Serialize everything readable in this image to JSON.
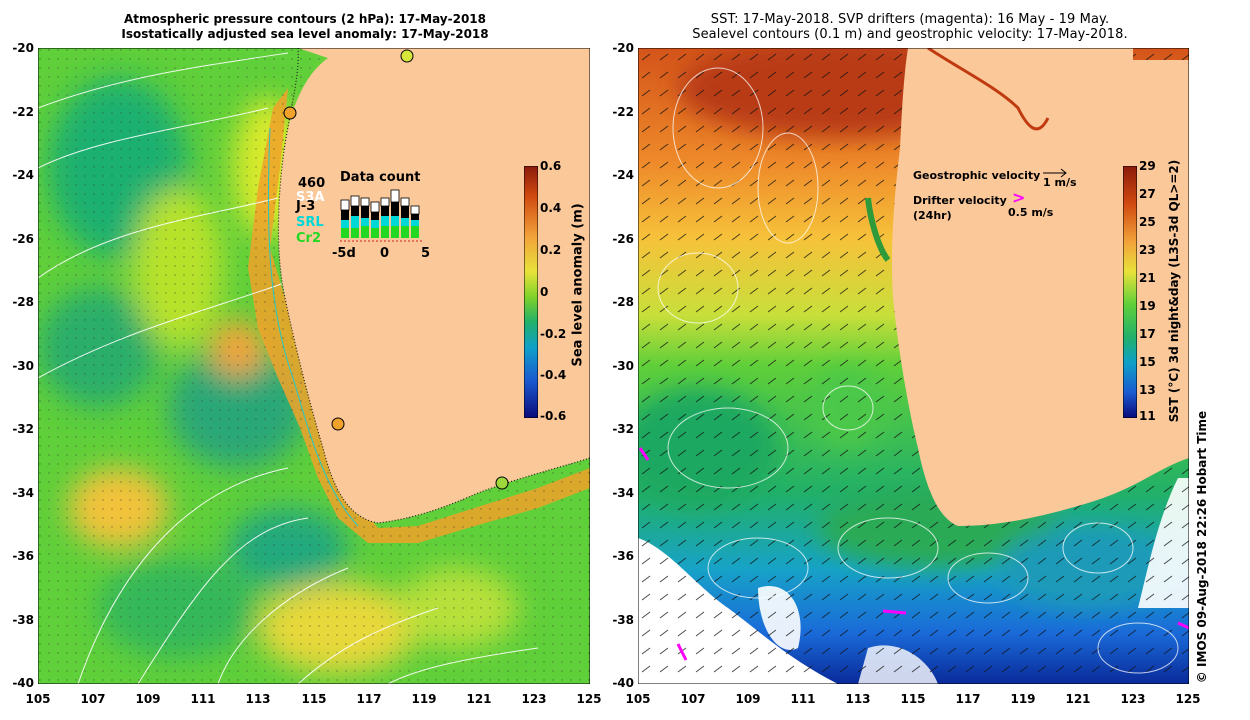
{
  "left_panel": {
    "title_line1": "Atmospheric pressure contours (2 hPa): 17-May-2018",
    "title_line2": "Isostatically adjusted sea level anomaly: 17-May-2018",
    "y_ticks": [
      "-20",
      "-22",
      "-24",
      "-26",
      "-28",
      "-30",
      "-32",
      "-34",
      "-36",
      "-38",
      "-40"
    ],
    "x_ticks": [
      "105",
      "107",
      "109",
      "111",
      "113",
      "115",
      "117",
      "119",
      "121",
      "123",
      "125"
    ],
    "colorbar_ticks": [
      "0.6",
      "0.4",
      "0.2",
      "0",
      "-0.2",
      "-0.4",
      "-0.6"
    ],
    "colorbar_label": "Sea level anomaly (m)",
    "inset": {
      "title": "Data count",
      "count": "460",
      "sats": [
        "S3A",
        "J-3",
        "SRL",
        "Cr2"
      ],
      "xticks": [
        "-5d",
        "0",
        "5"
      ]
    },
    "colors": {
      "land": "#fbc89a",
      "sats": [
        "#ffffff",
        "#000000",
        "#00d8d8",
        "#22d822"
      ]
    }
  },
  "right_panel": {
    "title_line1": "SST: 17-May-2018. SVP drifters (magenta): 16 May - 19 May.",
    "title_line2": "Sealevel contours (0.1 m) and geostrophic velocity: 17-May-2018.",
    "y_ticks": [
      "-20",
      "-22",
      "-24",
      "-26",
      "-28",
      "-30",
      "-32",
      "-34",
      "-36",
      "-38",
      "-40"
    ],
    "x_ticks": [
      "105",
      "107",
      "109",
      "111",
      "113",
      "115",
      "117",
      "119",
      "121",
      "123",
      "125"
    ],
    "colorbar_ticks": [
      "29",
      "27",
      "25",
      "23",
      "21",
      "19",
      "17",
      "15",
      "13",
      "11"
    ],
    "colorbar_label": "SST (°C) 3d night&day (L3S-3d QL>=2)",
    "legend": {
      "geo_label": "Geostrophic velocity",
      "geo_scale": "1 m/s",
      "drifter_label": "Drifter velocity",
      "drifter_sub": "(24hr)",
      "drifter_scale": "0.5 m/s"
    },
    "credit": "© IMOS 09-Aug-2018 22:26 Hobart Time",
    "colors": {
      "land": "#fbc89a",
      "drifter": "#ff00ff"
    }
  }
}
